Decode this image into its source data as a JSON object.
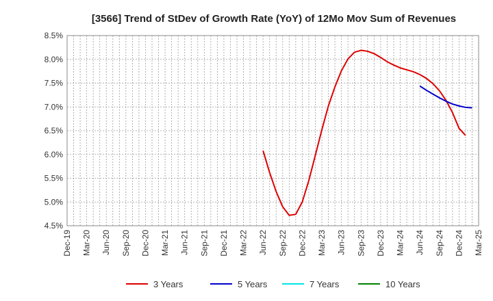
{
  "chart_data": {
    "type": "line",
    "title": "[3566]  Trend of StDev of Growth Rate (YoY) of 12Mo Mov Sum of Revenues",
    "xlabel": "",
    "ylabel": "",
    "ylim": [
      4.5,
      8.5
    ],
    "y_ticks": [
      "4.5%",
      "5.0%",
      "5.5%",
      "6.0%",
      "6.5%",
      "7.0%",
      "7.5%",
      "8.0%",
      "8.5%"
    ],
    "y_tick_values": [
      4.5,
      5.0,
      5.5,
      6.0,
      6.5,
      7.0,
      7.5,
      8.0,
      8.5
    ],
    "x_tick_labels": [
      "Dec-19",
      "Mar-20",
      "Jun-20",
      "Sep-20",
      "Dec-20",
      "Mar-21",
      "Jun-21",
      "Sep-21",
      "Dec-21",
      "Mar-22",
      "Jun-22",
      "Sep-22",
      "Dec-22",
      "Mar-23",
      "Jun-23",
      "Sep-23",
      "Dec-23",
      "Mar-24",
      "Jun-24",
      "Sep-24",
      "Dec-24",
      "Mar-25"
    ],
    "grid": true,
    "legend_position": "bottom",
    "series": [
      {
        "name": "3 Years",
        "color": "#dd0000",
        "points": [
          {
            "x": 30,
            "y": 6.08
          },
          {
            "x": 31,
            "y": 5.62
          },
          {
            "x": 32,
            "y": 5.22
          },
          {
            "x": 33,
            "y": 4.9
          },
          {
            "x": 34,
            "y": 4.72
          },
          {
            "x": 35,
            "y": 4.74
          },
          {
            "x": 36,
            "y": 5.0
          },
          {
            "x": 37,
            "y": 5.45
          },
          {
            "x": 38,
            "y": 5.98
          },
          {
            "x": 39,
            "y": 6.52
          },
          {
            "x": 40,
            "y": 7.02
          },
          {
            "x": 41,
            "y": 7.42
          },
          {
            "x": 42,
            "y": 7.76
          },
          {
            "x": 43,
            "y": 8.01
          },
          {
            "x": 44,
            "y": 8.15
          },
          {
            "x": 45,
            "y": 8.19
          },
          {
            "x": 46,
            "y": 8.17
          },
          {
            "x": 47,
            "y": 8.12
          },
          {
            "x": 48,
            "y": 8.04
          },
          {
            "x": 49,
            "y": 7.95
          },
          {
            "x": 50,
            "y": 7.88
          },
          {
            "x": 51,
            "y": 7.82
          },
          {
            "x": 52,
            "y": 7.78
          },
          {
            "x": 53,
            "y": 7.74
          },
          {
            "x": 54,
            "y": 7.68
          },
          {
            "x": 55,
            "y": 7.6
          },
          {
            "x": 56,
            "y": 7.49
          },
          {
            "x": 57,
            "y": 7.34
          },
          {
            "x": 58,
            "y": 7.14
          },
          {
            "x": 59,
            "y": 6.88
          },
          {
            "x": 60,
            "y": 6.55
          },
          {
            "x": 61,
            "y": 6.4
          }
        ]
      },
      {
        "name": "5 Years",
        "color": "#0000cc",
        "points": [
          {
            "x": 54,
            "y": 7.44
          },
          {
            "x": 55,
            "y": 7.35
          },
          {
            "x": 56,
            "y": 7.27
          },
          {
            "x": 57,
            "y": 7.19
          },
          {
            "x": 58,
            "y": 7.12
          },
          {
            "x": 59,
            "y": 7.06
          },
          {
            "x": 60,
            "y": 7.02
          },
          {
            "x": 61,
            "y": 6.99
          },
          {
            "x": 62,
            "y": 6.98
          }
        ]
      },
      {
        "name": "7 Years",
        "color": "#00e5e5",
        "points": []
      },
      {
        "name": "10 Years",
        "color": "#008000",
        "points": []
      }
    ]
  }
}
